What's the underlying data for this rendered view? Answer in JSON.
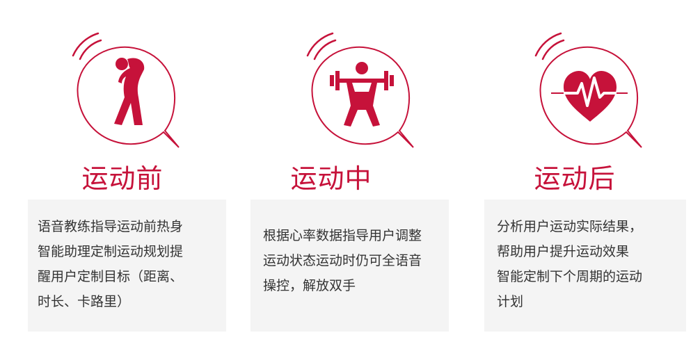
{
  "sections": [
    {
      "icon": "stretching-person-icon",
      "title": "运动前",
      "lines": [
        "语音教练指导运动前热身",
        "智能助理定制运动规划提",
        "醒用户定制目标（距离、",
        "时长、卡路里）"
      ]
    },
    {
      "icon": "weightlifting-icon",
      "title": "运动中",
      "lines": [
        "根据心率数据指导用户调整",
        "运动状态运动时仍可全语音",
        "操控，解放双手"
      ]
    },
    {
      "icon": "heart-pulse-icon",
      "title": "运动后",
      "lines": [
        "分析用户运动实际结果，",
        "帮助用户提升运动效果",
        "智能定制下个周期的运动",
        "计划"
      ]
    }
  ],
  "colors": {
    "accent": "#c6123a",
    "text": "#333333",
    "panel": "#f4f4f4"
  }
}
